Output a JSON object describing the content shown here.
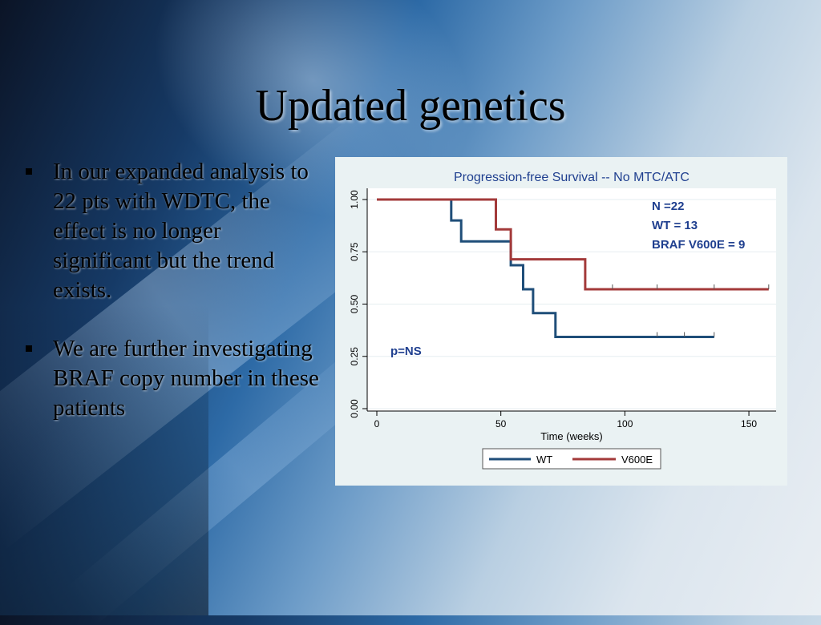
{
  "slide": {
    "title": "Updated genetics",
    "bullets": [
      "In our expanded analysis to 22 pts with WDTC, the effect is no longer significant but the trend exists.",
      "We are further investigating BRAF copy number in these patients"
    ]
  },
  "chart_data": {
    "type": "line",
    "title": "Progression-free Survival -- No MTC/ATC",
    "xlabel": "Time (weeks)",
    "ylabel": "",
    "xlim": [
      0,
      160
    ],
    "ylim": [
      0,
      1
    ],
    "x_ticks": [
      0,
      50,
      100,
      150
    ],
    "y_ticks": [
      0.0,
      0.25,
      0.5,
      0.75,
      1.0
    ],
    "x_tick_labels": [
      "0",
      "50",
      "100",
      "150"
    ],
    "y_tick_labels": [
      "0.00",
      "0.25",
      "0.50",
      "0.75",
      "1.00"
    ],
    "step": true,
    "series": [
      {
        "name": "WT",
        "color": "#1f4e79",
        "points": [
          [
            0,
            1.0
          ],
          [
            30,
            1.0
          ],
          [
            30,
            0.9
          ],
          [
            34,
            0.9
          ],
          [
            34,
            0.8
          ],
          [
            54,
            0.8
          ],
          [
            54,
            0.686
          ],
          [
            59,
            0.686
          ],
          [
            59,
            0.571
          ],
          [
            63,
            0.571
          ],
          [
            63,
            0.457
          ],
          [
            72,
            0.457
          ],
          [
            72,
            0.343
          ],
          [
            136,
            0.343
          ]
        ],
        "censor_x": [
          113,
          124,
          136
        ]
      },
      {
        "name": "V600E",
        "color": "#a33a3a",
        "points": [
          [
            0,
            1.0
          ],
          [
            48,
            1.0
          ],
          [
            48,
            0.857
          ],
          [
            54,
            0.857
          ],
          [
            54,
            0.714
          ],
          [
            84,
            0.714
          ],
          [
            84,
            0.571
          ],
          [
            158,
            0.571
          ]
        ],
        "censor_x": [
          95,
          113,
          136,
          158
        ]
      }
    ],
    "annotations": {
      "counts": [
        "N =22",
        "WT = 13",
        "BRAF V600E = 9"
      ],
      "pvalue": "p=NS",
      "counts_color": "#1f3f8f",
      "pvalue_color": "#1f3f8f"
    },
    "legend_position": "bottom",
    "grid": true
  }
}
